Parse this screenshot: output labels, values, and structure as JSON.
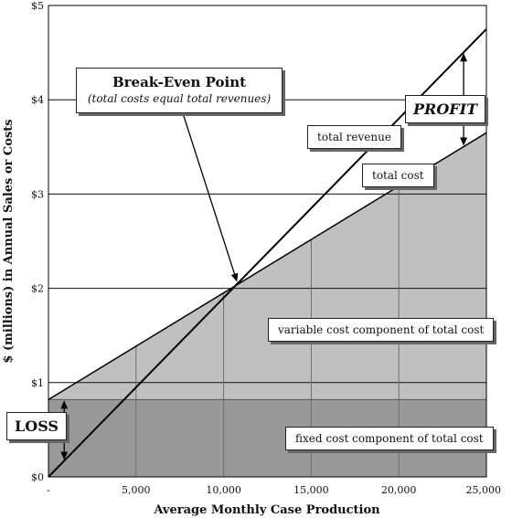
{
  "chart_data": {
    "type": "line",
    "xlabel": "Average Monthly Case Production",
    "ylabel": "$ (millions) in Annual Sales or Costs",
    "xlim": [
      0,
      25000
    ],
    "ylim": [
      0,
      5
    ],
    "x_ticks": [
      {
        "value": 0,
        "label": "-"
      },
      {
        "value": 5000,
        "label": "5,000"
      },
      {
        "value": 10000,
        "label": "10,000"
      },
      {
        "value": 15000,
        "label": "15,000"
      },
      {
        "value": 20000,
        "label": "20,000"
      },
      {
        "value": 25000,
        "label": "25,000"
      }
    ],
    "y_ticks": [
      {
        "value": 0,
        "label": "$0"
      },
      {
        "value": 1,
        "label": "$1"
      },
      {
        "value": 2,
        "label": "$2"
      },
      {
        "value": 3,
        "label": "$3"
      },
      {
        "value": 4,
        "label": "$4"
      },
      {
        "value": 5,
        "label": "$5"
      }
    ],
    "grid": true,
    "series": [
      {
        "name": "total revenue",
        "x": [
          0,
          25000
        ],
        "y": [
          0,
          4.75
        ]
      },
      {
        "name": "total cost",
        "x": [
          0,
          25000
        ],
        "y": [
          0.82,
          3.65
        ]
      }
    ],
    "fixed_cost": 0.82,
    "break_even": {
      "x": 10800,
      "y": 2.05
    },
    "colors": {
      "fixed_area": "#999999",
      "variable_area": "#c0c0c0",
      "line": "#000000",
      "grid": "#111111"
    },
    "annotations": {
      "break_even_title": "Break-Even Point",
      "break_even_subtitle": "(total costs equal total revenues)",
      "total_revenue": "total revenue",
      "total_cost": "total cost",
      "profit": "PROFIT",
      "loss": "LOSS",
      "variable_cost": "variable cost  component of total cost",
      "fixed_cost": "fixed cost component of total cost"
    }
  }
}
